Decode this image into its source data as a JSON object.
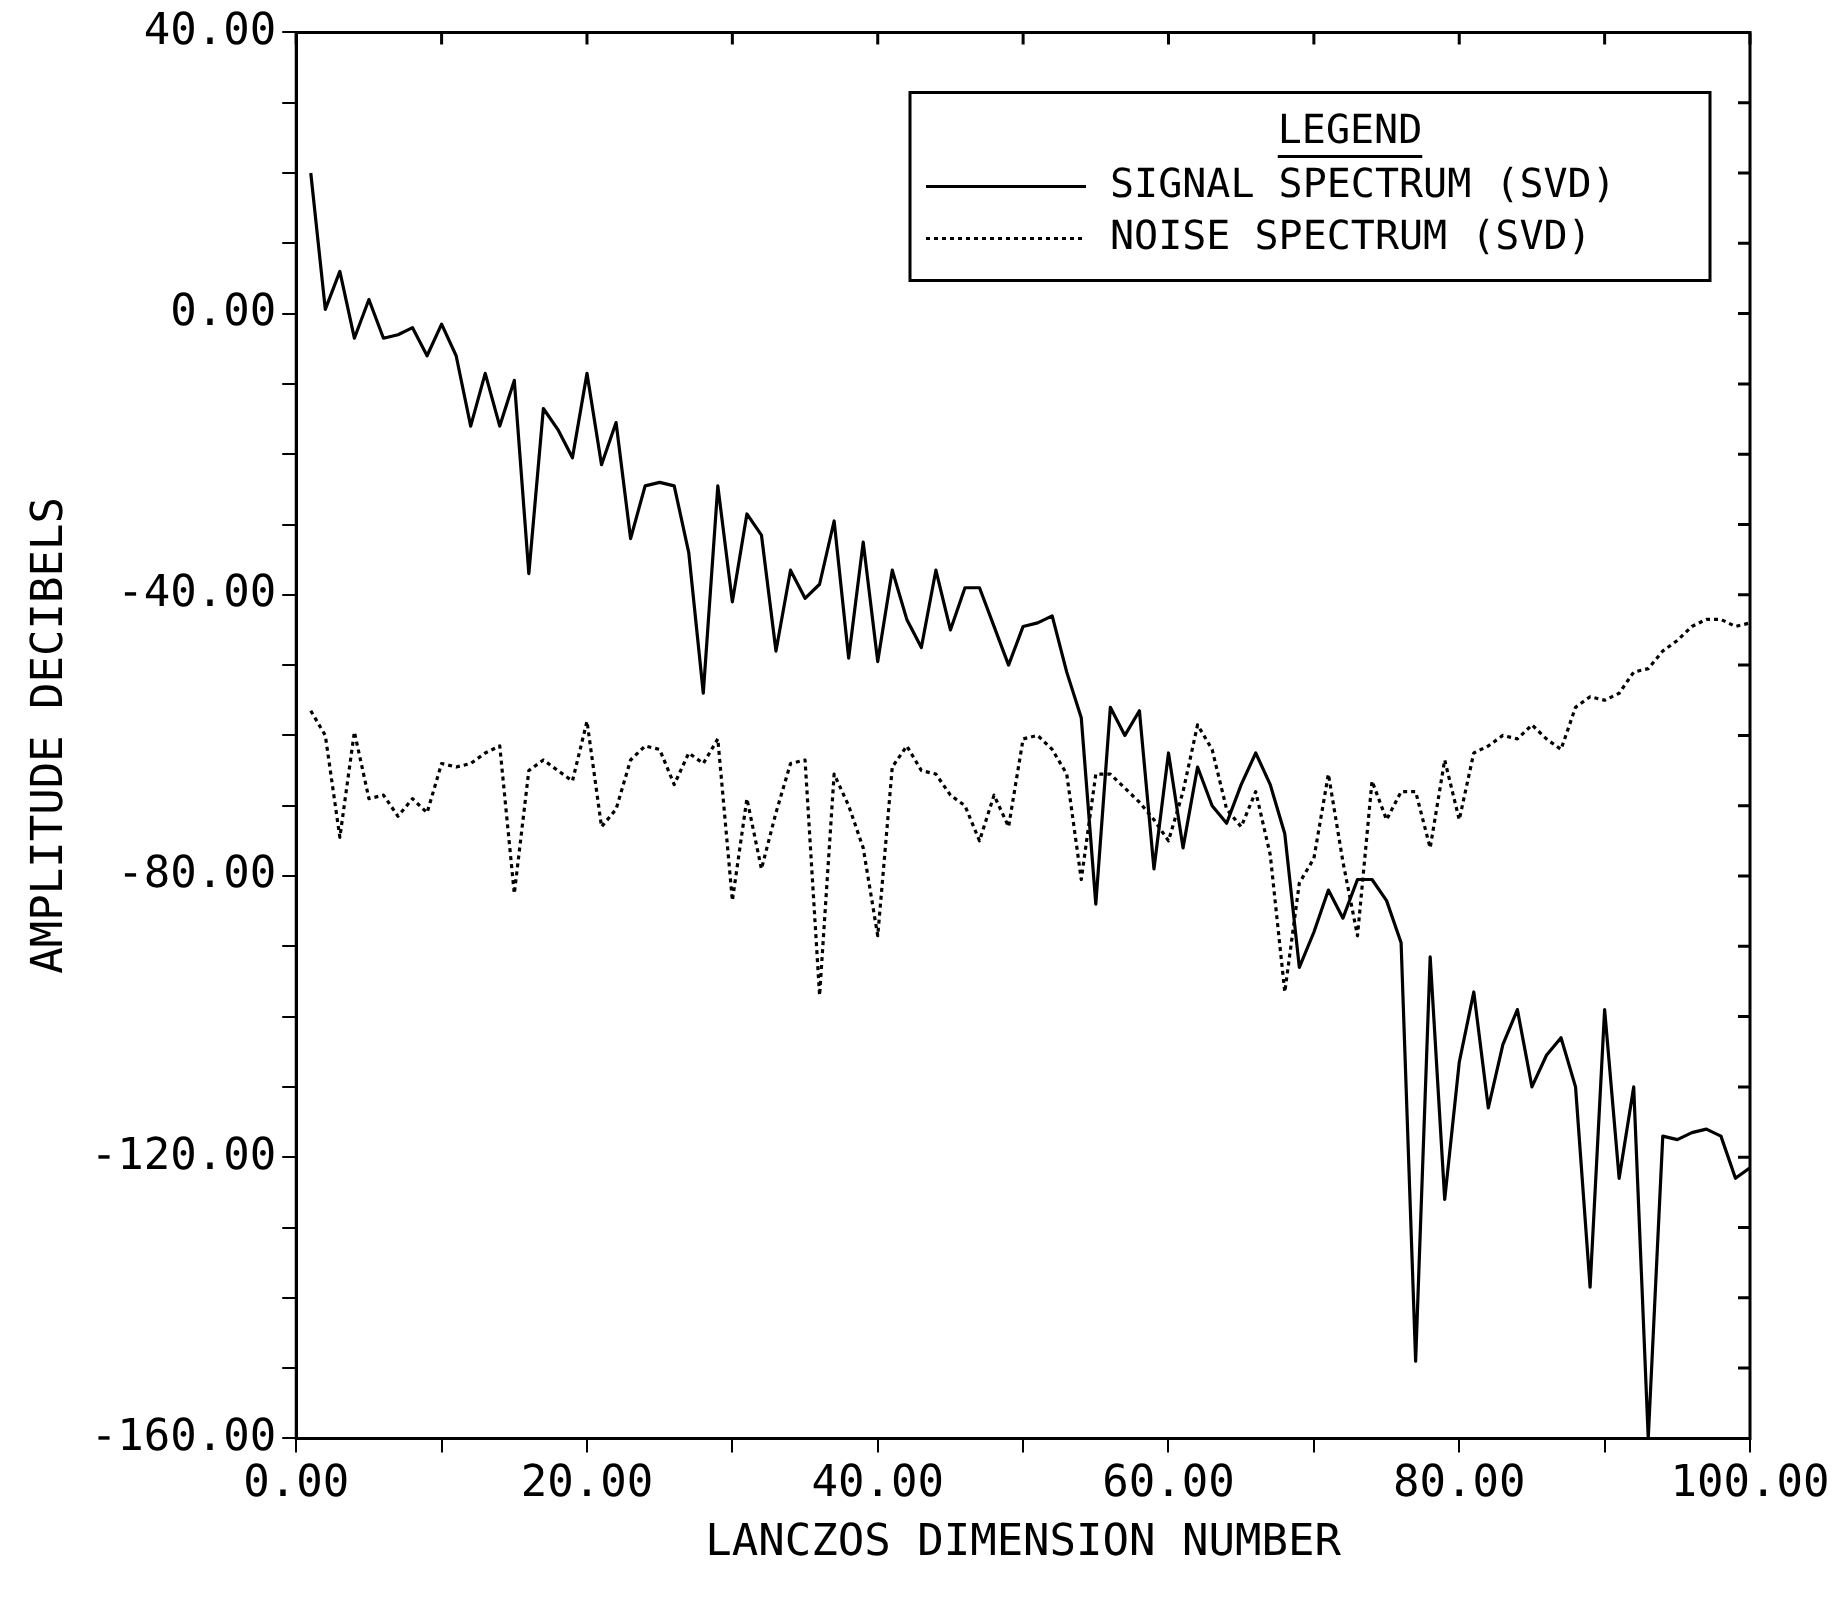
{
  "chart_data": {
    "type": "line",
    "xlabel": "LANCZOS DIMENSION NUMBER",
    "ylabel": "AMPLITUDE DECIBELS",
    "legend_title": "LEGEND",
    "legend": "top right",
    "grid": false,
    "marker": "none",
    "x": [
      1,
      2,
      3,
      4,
      5,
      6,
      7,
      8,
      9,
      10,
      11,
      12,
      13,
      14,
      15,
      16,
      17,
      18,
      19,
      20,
      21,
      22,
      23,
      24,
      25,
      26,
      27,
      28,
      29,
      30,
      31,
      32,
      33,
      34,
      35,
      36,
      37,
      38,
      39,
      40,
      41,
      42,
      43,
      44,
      45,
      46,
      47,
      48,
      49,
      50,
      51,
      52,
      53,
      54,
      55,
      56,
      57,
      58,
      59,
      60,
      61,
      62,
      63,
      64,
      65,
      66,
      67,
      68,
      69,
      70,
      71,
      72,
      73,
      74,
      75,
      76,
      77,
      78,
      79,
      80,
      81,
      82,
      83,
      84,
      85,
      86,
      87,
      88,
      89,
      90,
      91,
      92,
      93,
      94,
      95,
      96,
      97,
      98,
      99,
      100
    ],
    "xlim": [
      0,
      100
    ],
    "xticks": [
      {
        "value": 0,
        "label": "0.00"
      },
      {
        "value": 10,
        "label": null
      },
      {
        "value": 20,
        "label": "20.00"
      },
      {
        "value": 30,
        "label": null
      },
      {
        "value": 40,
        "label": "40.00"
      },
      {
        "value": 50,
        "label": null
      },
      {
        "value": 60,
        "label": "60.00"
      },
      {
        "value": 70,
        "label": null
      },
      {
        "value": 80,
        "label": "80.00"
      },
      {
        "value": 90,
        "label": null
      },
      {
        "value": 100,
        "label": "100.00"
      }
    ],
    "ylim": [
      -160,
      40
    ],
    "yticks": [
      {
        "value": -160,
        "label": "-160.00"
      },
      {
        "value": -150,
        "label": null
      },
      {
        "value": -140,
        "label": null
      },
      {
        "value": -130,
        "label": null
      },
      {
        "value": -120,
        "label": "-120.00"
      },
      {
        "value": -110,
        "label": null
      },
      {
        "value": -100,
        "label": null
      },
      {
        "value": -90,
        "label": null
      },
      {
        "value": -80,
        "label": "-80.00"
      },
      {
        "value": -70,
        "label": null
      },
      {
        "value": -60,
        "label": null
      },
      {
        "value": -50,
        "label": null
      },
      {
        "value": -40,
        "label": "-40.00"
      },
      {
        "value": -30,
        "label": null
      },
      {
        "value": -20,
        "label": null
      },
      {
        "value": -10,
        "label": null
      },
      {
        "value": 0,
        "label": "0.00"
      },
      {
        "value": 10,
        "label": null
      },
      {
        "value": 20,
        "label": null
      },
      {
        "value": 30,
        "label": null
      },
      {
        "value": 40,
        "label": "40.00"
      }
    ],
    "series": [
      {
        "name": "SIGNAL SPECTRUM (SVD)",
        "color": "#000000",
        "line_style": "solid",
        "values": [
          20,
          0.6,
          6,
          -3.5,
          2,
          -3.5,
          -3,
          -2,
          -6,
          -1.5,
          -6,
          -16,
          -8.5,
          -16,
          -9.5,
          -37,
          -13.5,
          -16.5,
          -20.5,
          -8.5,
          -21.5,
          -15.5,
          -32,
          -24.5,
          -24,
          -24.5,
          -34,
          -54,
          -24.5,
          -41,
          -28.5,
          -31.5,
          -48,
          -36.5,
          -40.5,
          -38.5,
          -29.5,
          -49,
          -32.5,
          -49.5,
          -36.5,
          -43.5,
          -47.5,
          -36.5,
          -45,
          -39,
          -39,
          -44.5,
          -50,
          -44.5,
          -44,
          -43,
          -51,
          -57.5,
          -84,
          -56,
          -60,
          -56.5,
          -79,
          -62.5,
          -76,
          -64.5,
          -70,
          -72.5,
          -67,
          -62.5,
          -67,
          -74,
          -93,
          -88,
          -82,
          -86,
          -80.5,
          -80.5,
          -83.5,
          -89.5,
          -149,
          -91.5,
          -126,
          -106.5,
          -96.5,
          -113,
          -104,
          -99,
          -110,
          -105.5,
          -103,
          -110,
          -138.5,
          -99,
          -123,
          -110,
          -160,
          -117,
          -117.5,
          -116.5,
          -116,
          -117,
          -123,
          -121.5
        ]
      },
      {
        "name": "NOISE SPECTRUM (SVD)",
        "color": "#000000",
        "line_style": "dotted",
        "values": [
          -56.5,
          -60,
          -74.5,
          -59.5,
          -69,
          -68.5,
          -71.5,
          -69,
          -71,
          -64,
          -64.5,
          -64,
          -62.5,
          -61.5,
          -82.5,
          -65,
          -63.5,
          -65,
          -66.5,
          -58,
          -73,
          -70.5,
          -63.5,
          -61.5,
          -62,
          -67,
          -62.5,
          -64,
          -60.5,
          -83.5,
          -69,
          -79,
          -71,
          -64,
          -63.5,
          -97,
          -65.5,
          -70,
          -76,
          -88.5,
          -64.5,
          -61.5,
          -65,
          -65.5,
          -68.5,
          -70,
          -75,
          -68.5,
          -73,
          -60.5,
          -60,
          -62,
          -65.5,
          -80.5,
          -65.5,
          -65.5,
          -67.5,
          -69.5,
          -72,
          -75,
          -68,
          -58.5,
          -62,
          -70.5,
          -73,
          -68,
          -77,
          -96.5,
          -81,
          -77.5,
          -65.5,
          -78,
          -88.5,
          -66.5,
          -72,
          -68,
          -68,
          -76,
          -63.5,
          -72,
          -62.5,
          -61.5,
          -60,
          -60.5,
          -58.5,
          -60.5,
          -62,
          -56,
          -54.5,
          -55,
          -54,
          -51,
          -50.5,
          -48,
          -46.5,
          -44.5,
          -43.5,
          -43.5,
          -44.5,
          -44
        ]
      }
    ]
  }
}
